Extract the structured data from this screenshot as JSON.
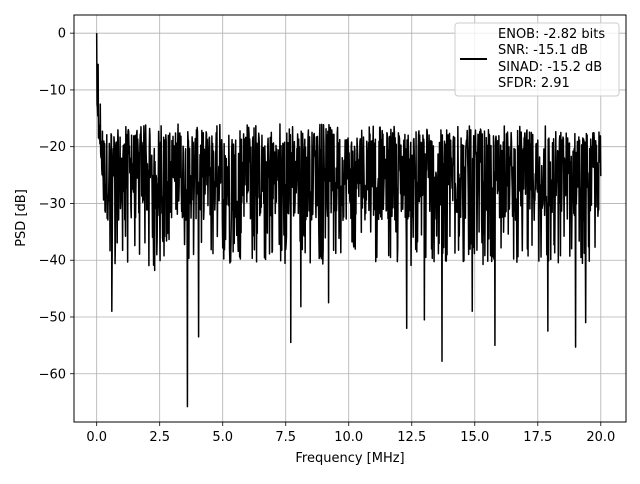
{
  "chart_data": {
    "type": "line",
    "title": "",
    "xlabel": "Frequency [MHz]",
    "ylabel": "PSD [dB]",
    "xlim": [
      -0.9,
      21.0
    ],
    "ylim": [
      -68.5,
      3.2
    ],
    "xticks": [
      0.0,
      2.5,
      5.0,
      7.5,
      10.0,
      12.5,
      15.0,
      17.5,
      20.0
    ],
    "xtick_labels": [
      "0.0",
      "2.5",
      "5.0",
      "7.5",
      "10.0",
      "12.5",
      "15.0",
      "17.5",
      "20.0"
    ],
    "yticks": [
      0,
      -10,
      -20,
      -30,
      -40,
      -50,
      -60
    ],
    "ytick_labels": [
      "0",
      "−10",
      "−20",
      "−30",
      "−40",
      "−50",
      "−60"
    ],
    "grid": true,
    "legend_position": "top-right",
    "legend_lines": [
      "ENOB: -2.82 bits",
      "SNR: -15.1 dB",
      "SINAD: -15.2 dB",
      "SFDR: 2.91"
    ],
    "series_color": "#000000",
    "series": [
      {
        "x_start": 0.0,
        "x_end": 20.0,
        "noise_floor_db": -25.5,
        "noise_band_db": [
          -33,
          -17
        ],
        "peaks": [
          {
            "x": 0.0,
            "y": 0.0
          },
          {
            "x": 0.05,
            "y": -5.5
          },
          {
            "x": 0.15,
            "y": -12.5
          }
        ],
        "dips": [
          {
            "x": 0.6,
            "y": -49.0
          },
          {
            "x": 2.3,
            "y": -41.8
          },
          {
            "x": 3.6,
            "y": -65.8
          },
          {
            "x": 4.05,
            "y": -53.5
          },
          {
            "x": 7.7,
            "y": -54.5
          },
          {
            "x": 8.1,
            "y": -48.2
          },
          {
            "x": 9.2,
            "y": -47.5
          },
          {
            "x": 12.3,
            "y": -52.0
          },
          {
            "x": 13.0,
            "y": -50.5
          },
          {
            "x": 13.7,
            "y": -57.8
          },
          {
            "x": 14.9,
            "y": -49.0
          },
          {
            "x": 15.8,
            "y": -55.0
          },
          {
            "x": 17.9,
            "y": -52.5
          },
          {
            "x": 19.0,
            "y": -55.3
          },
          {
            "x": 19.4,
            "y": -51.0
          }
        ]
      }
    ]
  }
}
